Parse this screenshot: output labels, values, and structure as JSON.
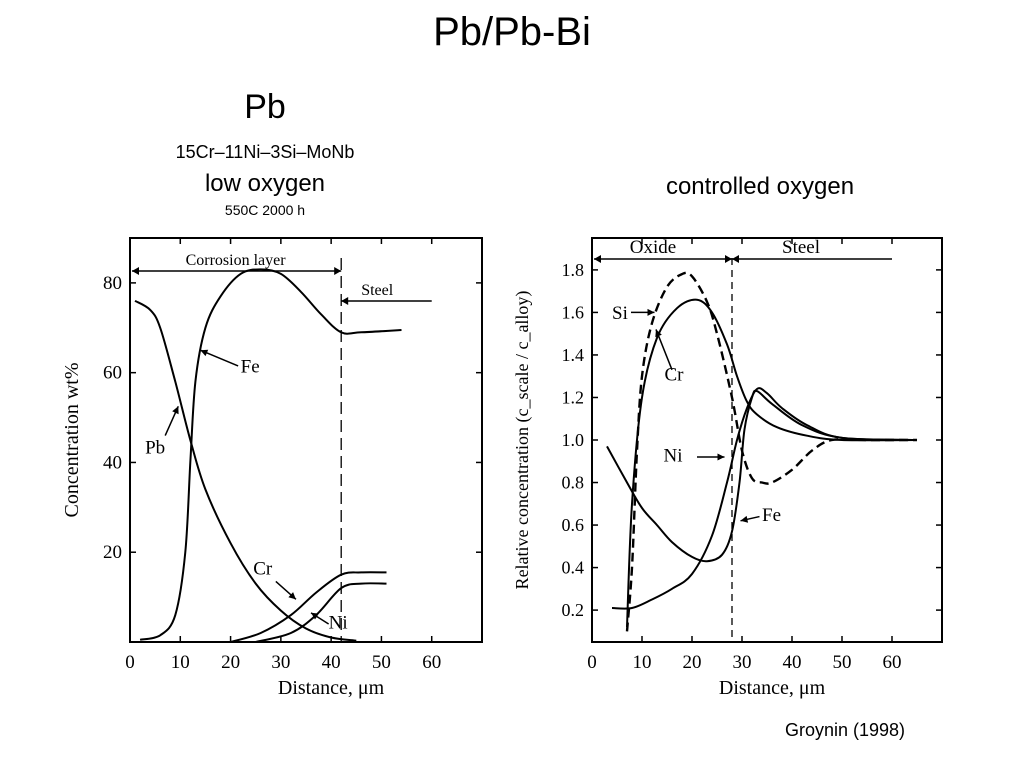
{
  "slide": {
    "title": "Pb/Pb-Bi",
    "left_heading": "Pb",
    "left_alloy": "15Cr–11Ni–3Si–MoNb",
    "left_condition": "low oxygen",
    "left_params": "550C   2000 h",
    "right_heading": "controlled oxygen",
    "citation": "Groynin (1998)"
  },
  "chart_data": [
    {
      "type": "line",
      "ylabel": "Concentration wt%",
      "xlabel": "Distance, μm",
      "xlim": [
        0,
        70
      ],
      "ylim": [
        0,
        90
      ],
      "xticks": [
        0,
        10,
        20,
        30,
        40,
        50,
        60
      ],
      "yticks": [
        20,
        40,
        60,
        80
      ],
      "regions": [
        {
          "label": "Corrosion layer",
          "from": 0,
          "to": 42
        },
        {
          "label": "Steel",
          "from": 42,
          "to": 60
        }
      ],
      "boundary_x": 42,
      "series": [
        {
          "name": "Fe",
          "points": [
            [
              2,
              0.5
            ],
            [
              6,
              1.5
            ],
            [
              9,
              6
            ],
            [
              11,
              20
            ],
            [
              12,
              40
            ],
            [
              13,
              58
            ],
            [
              15,
              70
            ],
            [
              18,
              77
            ],
            [
              22,
              82
            ],
            [
              26,
              83
            ],
            [
              30,
              82
            ],
            [
              34,
              78
            ],
            [
              38,
              73
            ],
            [
              42,
              69
            ],
            [
              46,
              69
            ],
            [
              54,
              69.5
            ]
          ]
        },
        {
          "name": "Pb",
          "points": [
            [
              1,
              76
            ],
            [
              4,
              74
            ],
            [
              6,
              70
            ],
            [
              9,
              58
            ],
            [
              12,
              45
            ],
            [
              15,
              34
            ],
            [
              20,
              22
            ],
            [
              25,
              13
            ],
            [
              30,
              7
            ],
            [
              35,
              3
            ],
            [
              40,
              1
            ],
            [
              45,
              0.3
            ]
          ]
        },
        {
          "name": "Cr",
          "points": [
            [
              20,
              0
            ],
            [
              26,
              2
            ],
            [
              32,
              6
            ],
            [
              37,
              11
            ],
            [
              42,
              15
            ],
            [
              46,
              15.5
            ],
            [
              51,
              15.5
            ]
          ]
        },
        {
          "name": "Ni",
          "points": [
            [
              25,
              0
            ],
            [
              32,
              2
            ],
            [
              37,
              6
            ],
            [
              42,
              12
            ],
            [
              46,
              13
            ],
            [
              51,
              13
            ]
          ]
        }
      ]
    },
    {
      "type": "line",
      "ylabel": "Relative concentration (c_scale / c_alloy)",
      "xlabel": "Distance, μm",
      "xlim": [
        0,
        70
      ],
      "ylim": [
        0.05,
        1.95
      ],
      "xticks": [
        0,
        10,
        20,
        30,
        40,
        50,
        60
      ],
      "yticks": [
        0.2,
        0.4,
        0.6,
        0.8,
        1.0,
        1.2,
        1.4,
        1.6,
        1.8
      ],
      "regions": [
        {
          "label": "Oxide",
          "from": 0,
          "to": 28
        },
        {
          "label": "Steel",
          "from": 28,
          "to": 60
        }
      ],
      "boundary_x": 28,
      "series": [
        {
          "name": "Si",
          "dashed": true,
          "points": [
            [
              7,
              0.1
            ],
            [
              8,
              0.4
            ],
            [
              9,
              0.95
            ],
            [
              10,
              1.3
            ],
            [
              12,
              1.55
            ],
            [
              15,
              1.72
            ],
            [
              18,
              1.78
            ],
            [
              20,
              1.77
            ],
            [
              23,
              1.65
            ],
            [
              25,
              1.5
            ],
            [
              28,
              1.2
            ],
            [
              30,
              0.95
            ],
            [
              32,
              0.82
            ],
            [
              34,
              0.8
            ],
            [
              36,
              0.8
            ],
            [
              40,
              0.86
            ],
            [
              44,
              0.95
            ],
            [
              48,
              1.0
            ],
            [
              55,
              1.0
            ],
            [
              65,
              1.0
            ]
          ]
        },
        {
          "name": "Cr",
          "points": [
            [
              7,
              0.12
            ],
            [
              8,
              0.7
            ],
            [
              10,
              1.2
            ],
            [
              13,
              1.48
            ],
            [
              17,
              1.62
            ],
            [
              21,
              1.66
            ],
            [
              24,
              1.6
            ],
            [
              27,
              1.45
            ],
            [
              29,
              1.3
            ],
            [
              31,
              1.18
            ],
            [
              33,
              1.12
            ],
            [
              37,
              1.06
            ],
            [
              43,
              1.02
            ],
            [
              50,
              1.0
            ],
            [
              65,
              1.0
            ]
          ]
        },
        {
          "name": "Ni",
          "points": [
            [
              4,
              0.21
            ],
            [
              8,
              0.21
            ],
            [
              12,
              0.25
            ],
            [
              16,
              0.3
            ],
            [
              20,
              0.37
            ],
            [
              24,
              0.55
            ],
            [
              27,
              0.8
            ],
            [
              29,
              1.0
            ],
            [
              31,
              1.15
            ],
            [
              33,
              1.24
            ],
            [
              35,
              1.22
            ],
            [
              38,
              1.15
            ],
            [
              43,
              1.07
            ],
            [
              50,
              1.01
            ],
            [
              65,
              1.0
            ]
          ]
        },
        {
          "name": "Fe",
          "points": [
            [
              3,
              0.97
            ],
            [
              7,
              0.8
            ],
            [
              10,
              0.68
            ],
            [
              13,
              0.6
            ],
            [
              16,
              0.52
            ],
            [
              20,
              0.45
            ],
            [
              23,
              0.43
            ],
            [
              26,
              0.46
            ],
            [
              28,
              0.57
            ],
            [
              29.5,
              0.8
            ],
            [
              30.5,
              1.05
            ],
            [
              32,
              1.2
            ],
            [
              33,
              1.23
            ],
            [
              36,
              1.17
            ],
            [
              42,
              1.07
            ],
            [
              50,
              1.01
            ],
            [
              65,
              1.0
            ]
          ]
        }
      ]
    }
  ]
}
